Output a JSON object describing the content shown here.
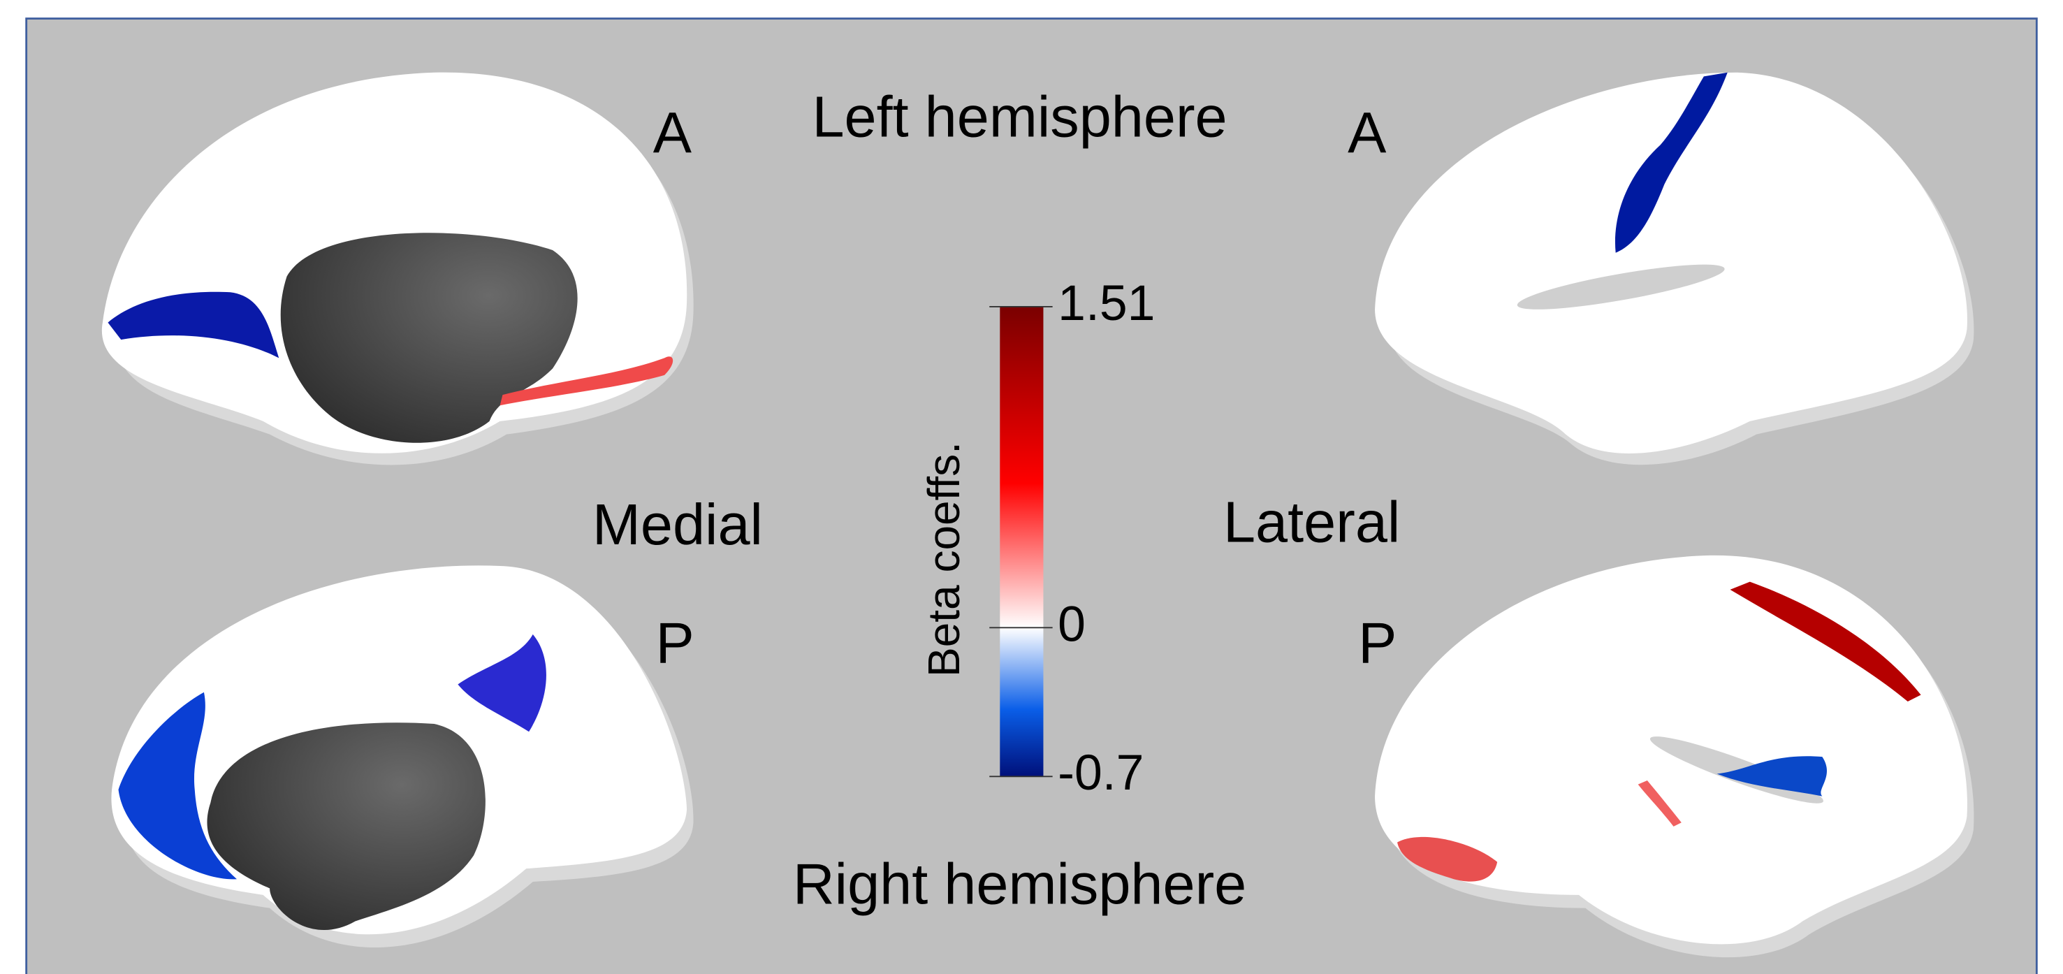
{
  "hemisphere_labels": [
    "Left hemisphere",
    "Right hemisphere"
  ],
  "view_labels": [
    "Medial",
    "Lateral"
  ],
  "orientation_labels": [
    "A",
    "A",
    "P",
    "P"
  ],
  "colorbar": {
    "label": "Beta coeffs.",
    "lim": [
      -0.7,
      1.51
    ],
    "ticks": [
      1.51,
      0,
      -0.7
    ]
  }
}
